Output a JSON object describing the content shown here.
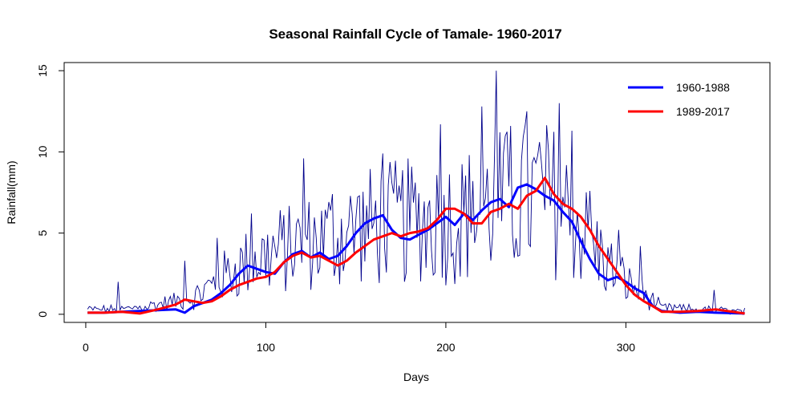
{
  "chart_data": {
    "type": "line",
    "title": "Seasonal Rainfall Cycle of Tamale- 1960-2017",
    "xlabel": "Days",
    "ylabel": "Rainfall(mm)",
    "xlim": [
      -12,
      380
    ],
    "ylim": [
      -0.5,
      15.5
    ],
    "xticks": [
      0,
      100,
      200,
      300
    ],
    "yticks": [
      0,
      5,
      10,
      15
    ],
    "grid": false,
    "legend_position": "top-right",
    "daily_series": {
      "color": "#00008B",
      "description_points": [
        [
          1,
          0.3
        ],
        [
          20,
          0.3
        ],
        [
          40,
          0.6
        ],
        [
          60,
          1.0
        ],
        [
          75,
          2.2
        ],
        [
          90,
          3.2
        ],
        [
          110,
          4.0
        ],
        [
          130,
          4.5
        ],
        [
          150,
          5.2
        ],
        [
          170,
          5.6
        ],
        [
          190,
          5.8
        ],
        [
          210,
          6.0
        ],
        [
          230,
          6.8
        ],
        [
          250,
          7.2
        ],
        [
          260,
          7.0
        ],
        [
          270,
          6.0
        ],
        [
          280,
          4.5
        ],
        [
          290,
          3.0
        ],
        [
          300,
          2.0
        ],
        [
          310,
          1.2
        ],
        [
          320,
          0.4
        ],
        [
          340,
          0.3
        ],
        [
          366,
          0.2
        ]
      ],
      "spikes": [
        [
          18,
          2.0
        ],
        [
          55,
          3.3
        ],
        [
          73,
          4.7
        ],
        [
          92,
          6.2
        ],
        [
          121,
          9.6
        ],
        [
          137,
          7.4
        ],
        [
          152,
          7.3
        ],
        [
          165,
          9.9
        ],
        [
          170,
          8.1
        ],
        [
          197,
          11.7
        ],
        [
          215,
          8.2
        ],
        [
          220,
          12.8
        ],
        [
          228,
          15.0
        ],
        [
          236,
          11.6
        ],
        [
          245,
          12.5
        ],
        [
          252,
          10.6
        ],
        [
          263,
          13.0
        ],
        [
          270,
          11.3
        ],
        [
          280,
          7.6
        ],
        [
          296,
          5.2
        ],
        [
          308,
          4.2
        ],
        [
          349,
          1.5
        ]
      ]
    },
    "series": [
      {
        "name": "1960-1988",
        "color": "#0000FF",
        "x": [
          1,
          10,
          20,
          30,
          40,
          50,
          55,
          60,
          65,
          70,
          75,
          80,
          85,
          90,
          95,
          100,
          105,
          110,
          115,
          120,
          125,
          130,
          135,
          140,
          145,
          150,
          155,
          160,
          165,
          170,
          175,
          180,
          185,
          190,
          195,
          200,
          205,
          210,
          215,
          220,
          225,
          230,
          235,
          240,
          245,
          250,
          255,
          260,
          265,
          270,
          275,
          280,
          285,
          290,
          295,
          300,
          305,
          310,
          315,
          320,
          330,
          340,
          350,
          366
        ],
        "values": [
          0.1,
          0.1,
          0.15,
          0.2,
          0.25,
          0.3,
          0.1,
          0.5,
          0.7,
          0.9,
          1.3,
          1.8,
          2.5,
          3.0,
          2.8,
          2.6,
          2.5,
          3.2,
          3.7,
          3.9,
          3.5,
          3.8,
          3.4,
          3.6,
          4.2,
          5.0,
          5.6,
          5.9,
          6.1,
          5.2,
          4.7,
          4.6,
          4.9,
          5.2,
          5.6,
          6.0,
          5.5,
          6.2,
          5.8,
          6.4,
          6.9,
          7.1,
          6.6,
          7.8,
          8.0,
          7.7,
          7.3,
          7.0,
          6.3,
          5.7,
          4.5,
          3.4,
          2.5,
          2.1,
          2.3,
          2.0,
          1.6,
          1.3,
          0.5,
          0.2,
          0.1,
          0.15,
          0.1,
          0.05
        ]
      },
      {
        "name": "1989-2017",
        "color": "#FF0000",
        "x": [
          1,
          10,
          20,
          30,
          40,
          50,
          55,
          60,
          65,
          70,
          75,
          80,
          85,
          90,
          95,
          100,
          105,
          110,
          115,
          120,
          125,
          130,
          135,
          140,
          145,
          150,
          155,
          160,
          165,
          170,
          175,
          180,
          185,
          190,
          195,
          200,
          205,
          210,
          215,
          220,
          225,
          230,
          235,
          240,
          245,
          250,
          255,
          260,
          265,
          270,
          275,
          280,
          285,
          290,
          295,
          300,
          305,
          310,
          315,
          320,
          330,
          340,
          350,
          366
        ],
        "values": [
          0.1,
          0.1,
          0.15,
          0.05,
          0.3,
          0.6,
          0.9,
          0.8,
          0.7,
          0.8,
          1.1,
          1.5,
          1.8,
          2.0,
          2.2,
          2.3,
          2.6,
          3.2,
          3.6,
          3.8,
          3.5,
          3.6,
          3.3,
          3.0,
          3.3,
          3.8,
          4.2,
          4.6,
          4.8,
          5.0,
          4.8,
          5.0,
          5.1,
          5.3,
          5.8,
          6.5,
          6.5,
          6.2,
          5.6,
          5.6,
          6.3,
          6.5,
          6.8,
          6.5,
          7.3,
          7.6,
          8.4,
          7.4,
          6.8,
          6.5,
          6.0,
          5.2,
          4.2,
          3.4,
          2.6,
          1.8,
          1.2,
          0.8,
          0.5,
          0.15,
          0.15,
          0.2,
          0.3,
          0.05
        ]
      }
    ]
  }
}
